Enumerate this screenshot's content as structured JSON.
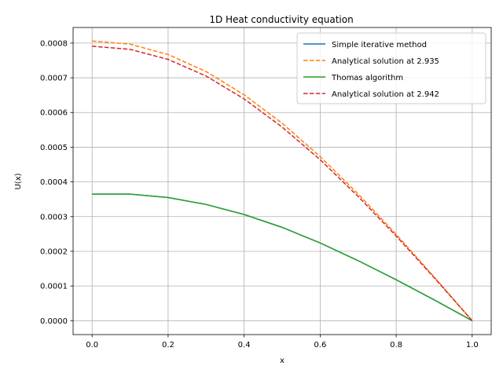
{
  "chart_data": {
    "type": "line",
    "title": "1D Heat conductivity equation",
    "xlabel": "x",
    "ylabel": "U(x)",
    "xlim": [
      -0.05,
      1.05
    ],
    "ylim": [
      -4e-05,
      0.000845
    ],
    "x_ticks": [
      0.0,
      0.2,
      0.4,
      0.6,
      0.8,
      1.0
    ],
    "x_tick_labels": [
      "0.0",
      "0.2",
      "0.4",
      "0.6",
      "0.8",
      "1.0"
    ],
    "y_ticks": [
      0,
      0.0001,
      0.0002,
      0.0003,
      0.0004,
      0.0005,
      0.0006,
      0.0007,
      0.0008
    ],
    "y_tick_labels": [
      "0.0000",
      "0.0001",
      "0.0002",
      "0.0003",
      "0.0004",
      "0.0005",
      "0.0006",
      "0.0007",
      "0.0008"
    ],
    "grid": true,
    "legend_position": "top-right",
    "x": [
      0.0,
      0.1,
      0.2,
      0.3,
      0.4,
      0.5,
      0.6,
      0.7,
      0.8,
      0.9,
      1.0
    ],
    "series": [
      {
        "name": "Simple iterative method",
        "color": "#1f77b4",
        "style": "solid",
        "values": [
          0.000365,
          0.000365,
          0.000355,
          0.000335,
          0.000306,
          0.000269,
          0.000224,
          0.000173,
          0.000118,
          6e-05,
          0.0
        ]
      },
      {
        "name": "Analytical solution at 2.935",
        "color": "#ff7f0e",
        "style": "dashed",
        "values": [
          0.000806,
          0.000797,
          0.000767,
          0.000718,
          0.000651,
          0.000569,
          0.000473,
          0.000365,
          0.000249,
          0.000126,
          0.0
        ]
      },
      {
        "name": "Thomas algorithm",
        "color": "#2ca02c",
        "style": "solid",
        "values": [
          0.000365,
          0.000365,
          0.000355,
          0.000335,
          0.000306,
          0.000269,
          0.000224,
          0.000173,
          0.000118,
          6e-05,
          0.0
        ]
      },
      {
        "name": "Analytical solution at 2.942",
        "color": "#d62728",
        "style": "dashed",
        "values": [
          0.000791,
          0.000782,
          0.000753,
          0.000705,
          0.000639,
          0.000558,
          0.000464,
          0.000358,
          0.000244,
          0.000124,
          0.0
        ]
      }
    ]
  }
}
